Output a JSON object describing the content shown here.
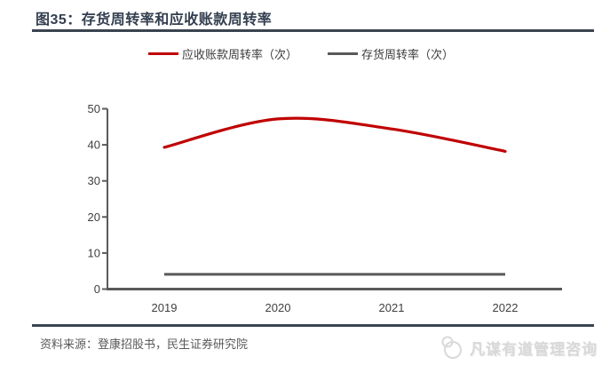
{
  "header": {
    "title": "图35：存货周转率和应收账款周转率"
  },
  "legend": [
    {
      "label": "应收账款周转率（次）",
      "color": "#C00000"
    },
    {
      "label": "存货周转率（次）",
      "color": "#595959"
    }
  ],
  "chart_data": {
    "type": "line",
    "categories": [
      "2019",
      "2020",
      "2021",
      "2022"
    ],
    "series": [
      {
        "name": "应收账款周转率（次）",
        "color": "#C00000",
        "values": [
          39.3,
          47.2,
          44.4,
          38.2
        ],
        "smooth": true
      },
      {
        "name": "存货周转率（次）",
        "color": "#595959",
        "values": [
          4.1,
          4.1,
          4.1,
          4.1
        ],
        "smooth": false
      }
    ],
    "title": "存货周转率和应收账款周转率",
    "xlabel": "",
    "ylabel": "",
    "ylim": [
      0,
      50
    ],
    "yticks": [
      0,
      10,
      20,
      30,
      40,
      50
    ],
    "grid": false,
    "legend_position": "top",
    "axis_color": "#595959",
    "tick_label_color": "#404040"
  },
  "footer": {
    "source": "资料来源：登康招股书，民生证券研究院"
  },
  "watermark": {
    "text": "凡谋有道管理咨询"
  }
}
